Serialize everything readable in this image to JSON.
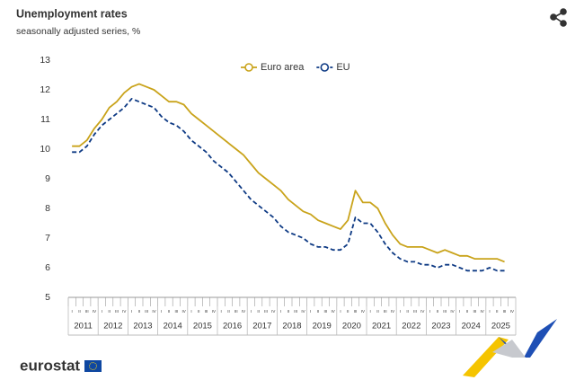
{
  "chart_data": {
    "type": "line",
    "title": "Unemployment rates",
    "subtitle": "seasonally adjusted series, %",
    "categories": [
      "I",
      "II",
      "III",
      "IV",
      "I",
      "II",
      "III",
      "IV",
      "I",
      "II",
      "III",
      "IV",
      "I",
      "II",
      "III",
      "IV",
      "I",
      "II",
      "III",
      "IV",
      "I",
      "II",
      "III",
      "IV",
      "I",
      "II",
      "III",
      "IV",
      "I",
      "II",
      "III",
      "IV",
      "I",
      "II",
      "III",
      "IV",
      "I",
      "II",
      "III",
      "IV",
      "I",
      "II",
      "III",
      "IV",
      "I",
      "II",
      "III",
      "IV",
      "I",
      "II",
      "III",
      "IV",
      "I",
      "II",
      "III",
      "IV",
      "I",
      "II",
      "III",
      "IV"
    ],
    "years": [
      "2011",
      "2012",
      "2013",
      "2014",
      "2015",
      "2016",
      "2017",
      "2018",
      "2019",
      "2020",
      "2021",
      "2022",
      "2023",
      "2024",
      "2025"
    ],
    "series": [
      {
        "name": "Euro area",
        "color": "#c9a31a",
        "dashed": false,
        "values": [
          10.1,
          10.1,
          10.3,
          10.7,
          11.0,
          11.4,
          11.6,
          11.9,
          12.1,
          12.2,
          12.1,
          12.0,
          11.8,
          11.6,
          11.6,
          11.5,
          11.2,
          11.0,
          10.8,
          10.6,
          10.4,
          10.2,
          10.0,
          9.8,
          9.5,
          9.2,
          9.0,
          8.8,
          8.6,
          8.3,
          8.1,
          7.9,
          7.8,
          7.6,
          7.5,
          7.4,
          7.3,
          7.6,
          8.6,
          8.2,
          8.2,
          8.0,
          7.5,
          7.1,
          6.8,
          6.7,
          6.7,
          6.7,
          6.6,
          6.5,
          6.6,
          6.5,
          6.4,
          6.4,
          6.3,
          6.3,
          6.3,
          6.3,
          6.2,
          null
        ]
      },
      {
        "name": "EU",
        "color": "#0e3a84",
        "dashed": true,
        "values": [
          9.9,
          9.9,
          10.1,
          10.5,
          10.8,
          11.0,
          11.2,
          11.4,
          11.7,
          11.6,
          11.5,
          11.4,
          11.1,
          10.9,
          10.8,
          10.6,
          10.3,
          10.1,
          9.9,
          9.6,
          9.4,
          9.2,
          8.9,
          8.6,
          8.3,
          8.1,
          7.9,
          7.7,
          7.4,
          7.2,
          7.1,
          7.0,
          6.8,
          6.7,
          6.7,
          6.6,
          6.6,
          6.8,
          7.7,
          7.5,
          7.5,
          7.2,
          6.8,
          6.5,
          6.3,
          6.2,
          6.2,
          6.1,
          6.1,
          6.0,
          6.1,
          6.1,
          6.0,
          5.9,
          5.9,
          5.9,
          6.0,
          5.9,
          5.9,
          null
        ]
      }
    ],
    "ylim": [
      5,
      13
    ],
    "yticks": [
      5,
      6,
      7,
      8,
      9,
      10,
      11,
      12,
      13
    ],
    "grid": false,
    "legend": "top"
  },
  "footer": {
    "logo": "eurostat"
  }
}
